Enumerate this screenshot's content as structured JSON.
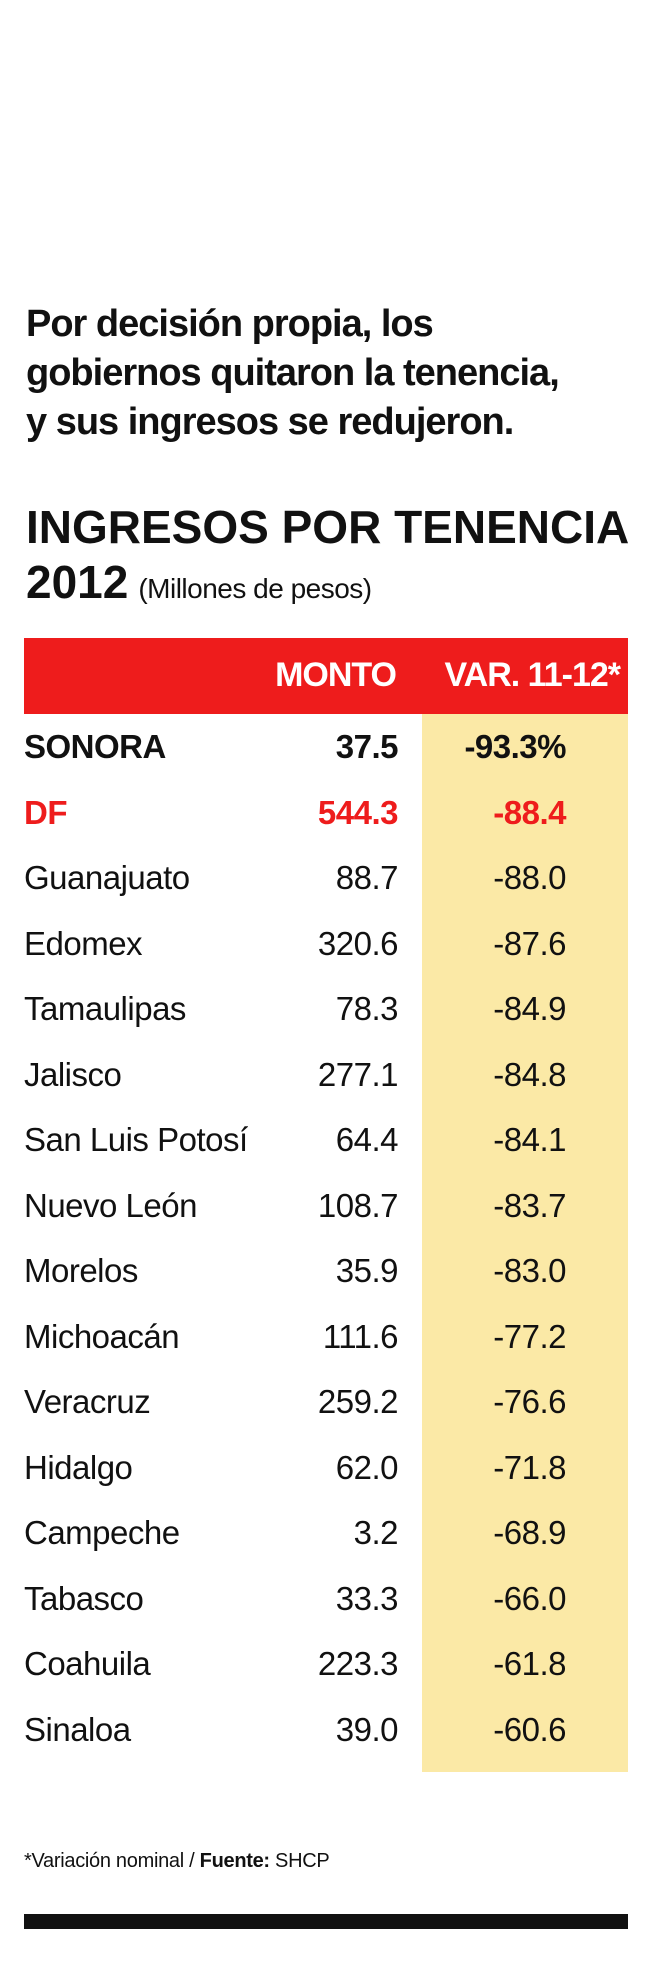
{
  "intro": {
    "line1": "Por decisión propia, los",
    "line2": "gobiernos quitaron la tenencia,",
    "line3": "y sus ingresos se redujeron."
  },
  "colors": {
    "header_bg": "#ee1c1c",
    "highlight_col": "#fbe9a6",
    "accent": "#ee1c1c"
  },
  "chart_data": {
    "type": "table",
    "title": "INGRESOS POR TENENCIA",
    "year": "2012",
    "units": "(Millones de pesos)",
    "columns": [
      "",
      "MONTO",
      "VAR. 11-12*"
    ],
    "rows": [
      {
        "name": "SONORA",
        "monto": "37.5",
        "var": "-93.3%"
      },
      {
        "name": "DF",
        "monto": "544.3",
        "var": "-88.4"
      },
      {
        "name": "Guanajuato",
        "monto": "88.7",
        "var": "-88.0"
      },
      {
        "name": "Edomex",
        "monto": "320.6",
        "var": "-87.6"
      },
      {
        "name": "Tamaulipas",
        "monto": "78.3",
        "var": "-84.9"
      },
      {
        "name": "Jalisco",
        "monto": "277.1",
        "var": "-84.8"
      },
      {
        "name": "San Luis Potosí",
        "monto": "64.4",
        "var": "-84.1"
      },
      {
        "name": "Nuevo León",
        "monto": "108.7",
        "var": "-83.7"
      },
      {
        "name": "Morelos",
        "monto": "35.9",
        "var": "-83.0"
      },
      {
        "name": "Michoacán",
        "monto": "111.6",
        "var": "-77.2"
      },
      {
        "name": "Veracruz",
        "monto": "259.2",
        "var": "-76.6"
      },
      {
        "name": "Hidalgo",
        "monto": "62.0",
        "var": "-71.8"
      },
      {
        "name": "Campeche",
        "monto": "3.2",
        "var": "-68.9"
      },
      {
        "name": "Tabasco",
        "monto": "33.3",
        "var": "-66.0"
      },
      {
        "name": "Coahuila",
        "monto": "223.3",
        "var": "-61.8"
      },
      {
        "name": "Sinaloa",
        "monto": "39.0",
        "var": "-60.6"
      }
    ]
  },
  "footnote": {
    "note": "*Variación nominal / ",
    "source_label": "Fuente:",
    "source": " SHCP"
  }
}
